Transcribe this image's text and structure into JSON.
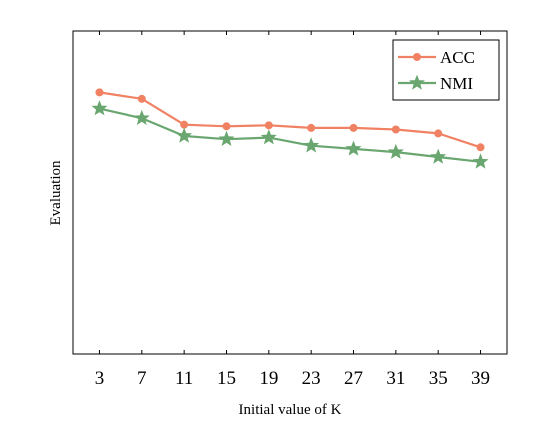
{
  "chart_data": {
    "type": "line",
    "title": "",
    "xlabel": "Initial value of K",
    "ylabel": "Evaluation",
    "x": [
      3,
      7,
      11,
      15,
      19,
      23,
      27,
      31,
      35,
      39
    ],
    "xlim": [
      0.5,
      41.5
    ],
    "ylim": [
      0,
      1
    ],
    "y_ticks_shown": false,
    "grid": false,
    "legend_position": "top-right",
    "series": [
      {
        "name": "ACC",
        "color": "#f08263",
        "marker": "circle",
        "values": [
          0.81,
          0.79,
          0.71,
          0.705,
          0.708,
          0.7,
          0.7,
          0.695,
          0.683,
          0.64
        ]
      },
      {
        "name": "NMI",
        "color": "#6aa66f",
        "marker": "star",
        "values": [
          0.76,
          0.73,
          0.675,
          0.665,
          0.67,
          0.645,
          0.635,
          0.625,
          0.61,
          0.595
        ]
      }
    ]
  }
}
